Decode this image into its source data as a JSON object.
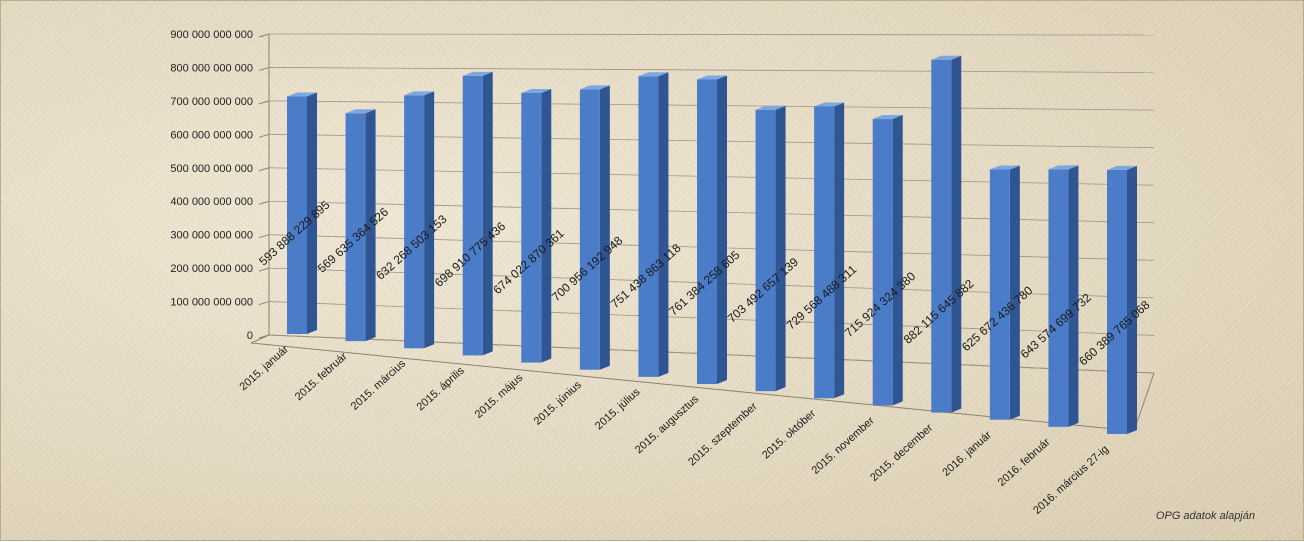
{
  "chart_data": {
    "type": "bar",
    "three_d": true,
    "categories": [
      "2015. január",
      "2015. február",
      "2015. március",
      "2015. április",
      "2015. május",
      "2015. június",
      "2015. július",
      "2015. augusztus",
      "2015. szeptember",
      "2015. október",
      "2015. november",
      "2015. december",
      "2016. január",
      "2016. február",
      "2016. március 27-ig"
    ],
    "values": [
      593888229895,
      569635364526,
      632268503153,
      698910775436,
      674022870361,
      700956192948,
      751438863118,
      761384258605,
      703492657139,
      729568488311,
      715924324380,
      882115645882,
      625672436780,
      643574699732,
      660389765068
    ],
    "data_labels": [
      "593 888 229 895",
      "569 635 364 526",
      "632 268 503 153",
      "698 910 775 436",
      "674 022 870 361",
      "700 956 192 948",
      "751 438 863 118",
      "761 384 258 605",
      "703 492 657 139",
      "729 568 488 311",
      "715 924 324 380",
      "882 115 645 882",
      "625 672 436 780",
      "643 574 699 732",
      "660 389 765 068"
    ],
    "y_ticks": [
      0,
      100000000000,
      200000000000,
      300000000000,
      400000000000,
      500000000000,
      600000000000,
      700000000000,
      800000000000,
      900000000000
    ],
    "y_tick_labels": [
      "0",
      "100 000 000 000",
      "200 000 000 000",
      "300 000 000 000",
      "400 000 000 000",
      "500 000 000 000",
      "600 000 000 000",
      "700 000 000 000",
      "800 000 000 000",
      "900 000 000 000"
    ],
    "ylim": [
      0,
      900000000000
    ],
    "grid": true,
    "legend": "none",
    "title": "",
    "xlabel": "",
    "ylabel": "",
    "bar_color": "#4a7cc7",
    "bar_side_color": "#2f5592",
    "bar_top_color": "#7ea6e0"
  },
  "source_note": "OPG adatok alapján"
}
